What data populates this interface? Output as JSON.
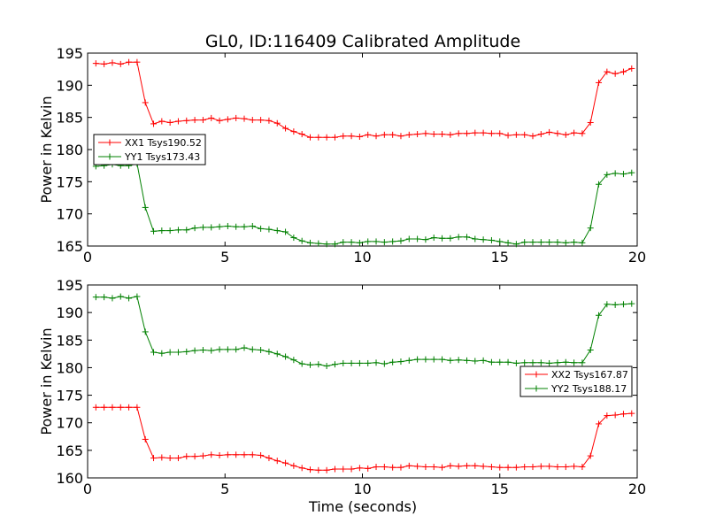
{
  "figure": {
    "title": "GL0, ID:116409 Calibrated Amplitude",
    "xlabel": "Time (seconds)"
  },
  "chart_data": [
    {
      "type": "line",
      "title": "GL0, ID:116409 Calibrated Amplitude",
      "xlabel": "",
      "ylabel": "Power in Kelvin",
      "xlim": [
        0,
        20
      ],
      "ylim": [
        165,
        195
      ],
      "x_ticks": [
        "0",
        "5",
        "10",
        "15",
        "20"
      ],
      "y_ticks": [
        "165",
        "170",
        "175",
        "180",
        "185",
        "190",
        "195"
      ],
      "legend_position": "center-left",
      "x": [
        0.3,
        0.6,
        0.9,
        1.2,
        1.5,
        1.8,
        2.1,
        2.4,
        2.7,
        3.0,
        3.3,
        3.6,
        3.9,
        4.2,
        4.5,
        4.8,
        5.1,
        5.4,
        5.7,
        6.0,
        6.3,
        6.6,
        6.9,
        7.2,
        7.5,
        7.8,
        8.1,
        8.4,
        8.7,
        9.0,
        9.3,
        9.6,
        9.9,
        10.2,
        10.5,
        10.8,
        11.1,
        11.4,
        11.7,
        12.0,
        12.3,
        12.6,
        12.9,
        13.2,
        13.5,
        13.8,
        14.1,
        14.4,
        14.7,
        15.0,
        15.3,
        15.6,
        15.9,
        16.2,
        16.5,
        16.8,
        17.1,
        17.4,
        17.7,
        18.0,
        18.3,
        18.6,
        18.9,
        19.2,
        19.5,
        19.8
      ],
      "series": [
        {
          "name": "XX1 Tsys190.52",
          "color": "#ff0000",
          "values": [
            193.4,
            193.3,
            193.5,
            193.3,
            193.6,
            193.6,
            187.3,
            184.0,
            184.4,
            184.2,
            184.4,
            184.5,
            184.6,
            184.6,
            184.9,
            184.5,
            184.7,
            184.9,
            184.8,
            184.6,
            184.6,
            184.5,
            184.1,
            183.3,
            182.8,
            182.4,
            181.9,
            181.9,
            181.9,
            181.9,
            182.1,
            182.1,
            182.0,
            182.3,
            182.1,
            182.3,
            182.3,
            182.1,
            182.3,
            182.4,
            182.5,
            182.4,
            182.4,
            182.3,
            182.5,
            182.5,
            182.6,
            182.6,
            182.5,
            182.5,
            182.2,
            182.3,
            182.3,
            182.1,
            182.4,
            182.7,
            182.5,
            182.3,
            182.6,
            182.5,
            184.2,
            190.4,
            192.1,
            191.8,
            192.1,
            192.6
          ]
        },
        {
          "name": "YY1 Tsys173.43",
          "color": "#008000",
          "values": [
            177.4,
            177.5,
            177.7,
            177.5,
            177.5,
            177.8,
            171.0,
            167.3,
            167.4,
            167.4,
            167.5,
            167.5,
            167.8,
            167.9,
            167.9,
            168.0,
            168.1,
            168.0,
            168.0,
            168.1,
            167.7,
            167.6,
            167.4,
            167.2,
            166.3,
            165.8,
            165.5,
            165.4,
            165.3,
            165.3,
            165.6,
            165.6,
            165.5,
            165.7,
            165.7,
            165.6,
            165.7,
            165.8,
            166.1,
            166.1,
            166.0,
            166.3,
            166.2,
            166.2,
            166.4,
            166.4,
            166.1,
            166.0,
            165.9,
            165.7,
            165.5,
            165.3,
            165.6,
            165.6,
            165.6,
            165.6,
            165.6,
            165.5,
            165.6,
            165.5,
            167.8,
            174.6,
            176.1,
            176.3,
            176.2,
            176.4
          ]
        }
      ]
    },
    {
      "type": "line",
      "title": "",
      "xlabel": "Time (seconds)",
      "ylabel": "Power in Kelvin",
      "xlim": [
        0,
        20
      ],
      "ylim": [
        160,
        195
      ],
      "x_ticks": [
        "0",
        "5",
        "10",
        "15",
        "20"
      ],
      "y_ticks": [
        "160",
        "165",
        "170",
        "175",
        "180",
        "185",
        "190",
        "195"
      ],
      "legend_position": "center-right",
      "x": [
        0.3,
        0.6,
        0.9,
        1.2,
        1.5,
        1.8,
        2.1,
        2.4,
        2.7,
        3.0,
        3.3,
        3.6,
        3.9,
        4.2,
        4.5,
        4.8,
        5.1,
        5.4,
        5.7,
        6.0,
        6.3,
        6.6,
        6.9,
        7.2,
        7.5,
        7.8,
        8.1,
        8.4,
        8.7,
        9.0,
        9.3,
        9.6,
        9.9,
        10.2,
        10.5,
        10.8,
        11.1,
        11.4,
        11.7,
        12.0,
        12.3,
        12.6,
        12.9,
        13.2,
        13.5,
        13.8,
        14.1,
        14.4,
        14.7,
        15.0,
        15.3,
        15.6,
        15.9,
        16.2,
        16.5,
        16.8,
        17.1,
        17.4,
        17.7,
        18.0,
        18.3,
        18.6,
        18.9,
        19.2,
        19.5,
        19.8
      ],
      "series": [
        {
          "name": "XX2 Tsys167.87",
          "color": "#ff0000",
          "values": [
            172.8,
            172.8,
            172.8,
            172.8,
            172.8,
            172.8,
            167.0,
            163.6,
            163.7,
            163.6,
            163.6,
            163.9,
            163.9,
            164.0,
            164.2,
            164.1,
            164.2,
            164.2,
            164.2,
            164.2,
            164.1,
            163.6,
            163.1,
            162.7,
            162.2,
            161.8,
            161.5,
            161.4,
            161.4,
            161.6,
            161.6,
            161.6,
            161.8,
            161.7,
            162.0,
            162.0,
            161.9,
            161.9,
            162.2,
            162.1,
            162.0,
            162.0,
            161.9,
            162.2,
            162.1,
            162.2,
            162.2,
            162.1,
            162.0,
            161.9,
            161.9,
            161.9,
            162.0,
            162.0,
            162.1,
            162.1,
            162.0,
            162.0,
            162.1,
            162.0,
            164.0,
            169.8,
            171.3,
            171.4,
            171.6,
            171.7
          ]
        },
        {
          "name": "YY2 Tsys188.17",
          "color": "#008000",
          "values": [
            192.8,
            192.8,
            192.6,
            192.9,
            192.6,
            192.9,
            186.5,
            182.8,
            182.6,
            182.8,
            182.8,
            182.9,
            183.1,
            183.2,
            183.1,
            183.3,
            183.3,
            183.3,
            183.6,
            183.3,
            183.2,
            182.9,
            182.5,
            182.0,
            181.4,
            180.7,
            180.5,
            180.6,
            180.3,
            180.6,
            180.8,
            180.8,
            180.8,
            180.8,
            180.9,
            180.7,
            181.0,
            181.1,
            181.3,
            181.5,
            181.5,
            181.5,
            181.5,
            181.3,
            181.4,
            181.3,
            181.2,
            181.3,
            181.0,
            181.0,
            181.0,
            180.8,
            180.9,
            180.9,
            180.9,
            180.8,
            180.9,
            181.0,
            180.9,
            180.9,
            183.2,
            189.5,
            191.5,
            191.4,
            191.5,
            191.6
          ]
        }
      ]
    }
  ]
}
